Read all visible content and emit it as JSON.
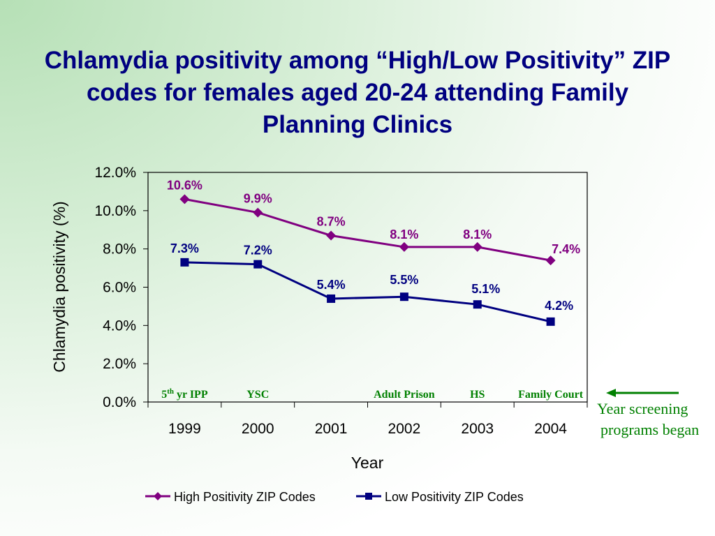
{
  "chart_data": {
    "type": "line",
    "title": "Chlamydia positivity among “High/Low Positivity” ZIP codes for females aged 20-24 attending Family Planning Clinics",
    "xlabel": "Year",
    "ylabel": "Chlamydia positivity (%)",
    "categories": [
      "1999",
      "2000",
      "2001",
      "2002",
      "2003",
      "2004"
    ],
    "ylim": [
      0,
      12
    ],
    "yticks": [
      "0.0%",
      "2.0%",
      "4.0%",
      "6.0%",
      "8.0%",
      "10.0%",
      "12.0%"
    ],
    "grid": false,
    "legend_position": "bottom",
    "series": [
      {
        "name": "High Positivity ZIP Codes",
        "values": [
          10.6,
          9.9,
          8.7,
          8.1,
          8.1,
          7.4
        ],
        "labels": [
          "10.6%",
          "9.9%",
          "8.7%",
          "8.1%",
          "8.1%",
          "7.4%"
        ],
        "color": "#800080",
        "marker": "diamond"
      },
      {
        "name": "Low Positivity ZIP Codes",
        "values": [
          7.3,
          7.2,
          5.4,
          5.5,
          5.1,
          4.2
        ],
        "labels": [
          "7.3%",
          "7.2%",
          "5.4%",
          "5.5%",
          "5.1%",
          "4.2%"
        ],
        "color": "#000080",
        "marker": "square"
      }
    ],
    "annotations": {
      "programs": [
        {
          "year": "1999",
          "text": "5th yr IPP"
        },
        {
          "year": "2000",
          "text": "YSC"
        },
        {
          "year": "2002",
          "text": "Adult Prison"
        },
        {
          "year": "2003",
          "text": "HS"
        },
        {
          "year": "2004",
          "text": "Family Court"
        }
      ],
      "note_line1": "Year screening",
      "note_line2": "programs began",
      "color": "#008000"
    }
  }
}
